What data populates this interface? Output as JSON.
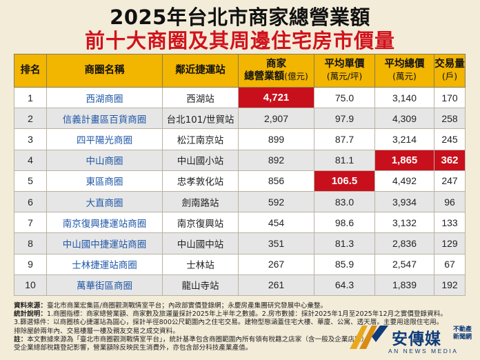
{
  "title_line1": "2025年台北市商家總營業額",
  "title_line2": "前十大商圈及其周邊住宅房市價量",
  "headers": {
    "rank": "排名",
    "name": "商圈名稱",
    "station": "鄰近捷運站",
    "revenue_line1": "商家",
    "revenue_line2": "總營業額",
    "revenue_unit": "(億元)",
    "unit_price_line1": "平均單價",
    "unit_price_unit": "(萬元/坪)",
    "total_price_line1": "平均總價",
    "total_price_unit": "(萬元)",
    "volume_line1": "交易量",
    "volume_unit": "(戶)"
  },
  "rows": [
    {
      "rank": "1",
      "name": "西湖商圈",
      "station": "西湖站",
      "revenue": "4,721",
      "unit_price": "75.0",
      "total_price": "3,140",
      "volume": "170"
    },
    {
      "rank": "2",
      "name": "信義計畫區百貨商圈",
      "station": "台北101/世貿站",
      "revenue": "2,907",
      "unit_price": "97.9",
      "total_price": "4,309",
      "volume": "258"
    },
    {
      "rank": "3",
      "name": "四平陽光商圈",
      "station": "松江南京站",
      "revenue": "899",
      "unit_price": "87.7",
      "total_price": "3,214",
      "volume": "245"
    },
    {
      "rank": "4",
      "name": "中山商圈",
      "station": "中山國小站",
      "revenue": "892",
      "unit_price": "81.1",
      "total_price": "1,865",
      "volume": "362"
    },
    {
      "rank": "5",
      "name": "東區商圈",
      "station": "忠孝敦化站",
      "revenue": "856",
      "unit_price": "106.5",
      "total_price": "4,492",
      "volume": "247"
    },
    {
      "rank": "6",
      "name": "大直商圈",
      "station": "劍南路站",
      "revenue": "592",
      "unit_price": "83.0",
      "total_price": "3,934",
      "volume": "96"
    },
    {
      "rank": "7",
      "name": "南京復興捷運站商圈",
      "station": "南京復興站",
      "revenue": "454",
      "unit_price": "98.6",
      "total_price": "3,132",
      "volume": "133"
    },
    {
      "rank": "8",
      "name": "中山國中捷運站商圈",
      "station": "中山國中站",
      "revenue": "351",
      "unit_price": "81.3",
      "total_price": "2,836",
      "volume": "129"
    },
    {
      "rank": "9",
      "name": "士林捷運站商圈",
      "station": "士林站",
      "revenue": "267",
      "unit_price": "85.9",
      "total_price": "2,547",
      "volume": "67"
    },
    {
      "rank": "10",
      "name": "萬華街區商圈",
      "station": "龍山寺站",
      "revenue": "261",
      "unit_price": "64.3",
      "total_price": "1,839",
      "volume": "192"
    }
  ],
  "highlight_color": "#c8101d",
  "notes": {
    "source_label": "資料來源：",
    "source_text": "臺北市商業宏集區/商圈觀測戰情室平台；內政部實價登錄網；永慶房產集團研究發展中心彙整。",
    "stats_label": "統計說明：",
    "stats_text": "1.商圈指標：商家總營業額、商家數及旅運量採計2025年上半年之數據。2.房市數據：採計2025年1月至2025年12月之實價登錄資料。",
    "line3": "3.篩選條件：以商圈核心捷運站為圓心，採計半徑800公尺範圍內之住宅交易。建物型態涵蓋住宅大樓、華廈、公寓、透天厝。主要用途限住宅用。",
    "line4": "排除屋齡兩年內、交易樓層一樓及親友交易之成交資料。",
    "note_label": "註：",
    "note_text": "本文數據來源為「臺北市商圈觀測戰情室平台」，統計基準包含商圈範圍內所有領有稅籍之店家（含一般及企業店家），",
    "line6": "受企業總部稅籍登記影響，營業額除反映民生消費外，亦包含部分科技產業產值。"
  },
  "logo": {
    "name": "安傳媒",
    "side_line1": "不動產",
    "side_line2": "新聞網",
    "english": "AN NEWS MEDIA"
  }
}
